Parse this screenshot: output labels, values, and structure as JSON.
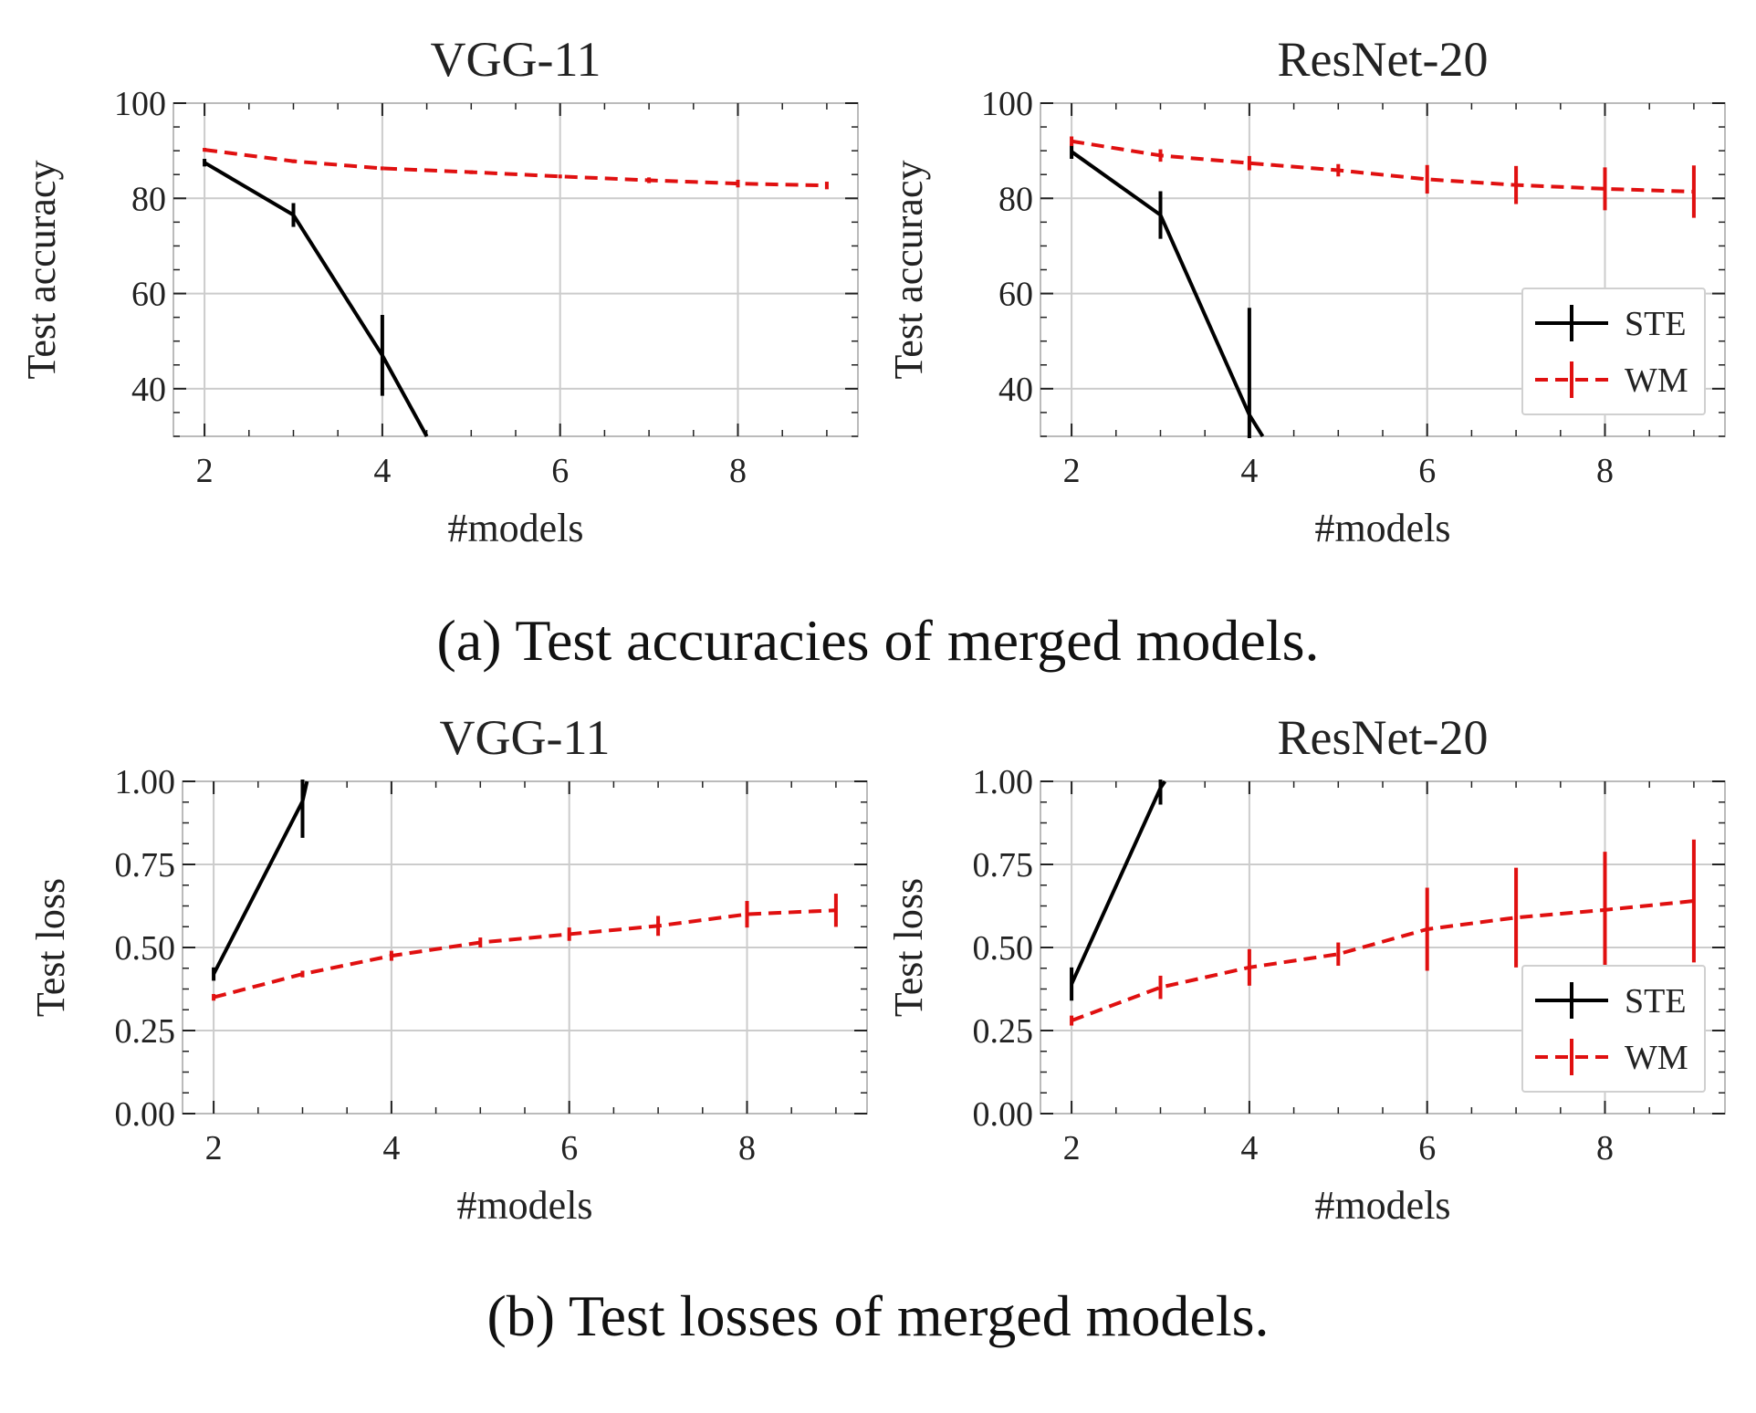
{
  "colors": {
    "ste": "#000000",
    "wm": "#e01010",
    "grid": "#cccccc",
    "frame": "#bbbbbb"
  },
  "captions": {
    "a": "(a) Test accuracies of merged models.",
    "b": "(b) Test losses of merged models."
  },
  "chart_data": [
    {
      "id": "acc-vgg",
      "type": "line",
      "title": "VGG-11",
      "xlabel": "#models",
      "ylabel": "Test accuracy",
      "xlim": [
        1.65,
        9.35
      ],
      "ylim": [
        30,
        100
      ],
      "xticks": [
        2,
        4,
        6,
        8
      ],
      "yticks": [
        40,
        60,
        80,
        100
      ],
      "ytick_labels": [
        "40",
        "60",
        "80",
        "100"
      ],
      "legend": null,
      "series": [
        {
          "name": "STE",
          "color": "#000000",
          "dashed": false,
          "x": [
            2,
            3,
            4,
            4.5
          ],
          "y": [
            87.5,
            76.5,
            47,
            30
          ],
          "err": [
            0.8,
            2.5,
            8.5,
            0
          ]
        },
        {
          "name": "WM",
          "color": "#e01010",
          "dashed": true,
          "x": [
            2,
            3,
            4,
            5,
            6,
            7,
            8,
            9
          ],
          "y": [
            90.2,
            87.8,
            86.3,
            85.5,
            84.6,
            83.8,
            83.1,
            82.7
          ],
          "err": [
            0.4,
            0.4,
            0.4,
            0.4,
            0.4,
            0.6,
            0.8,
            0.8
          ]
        }
      ]
    },
    {
      "id": "acc-resnet",
      "type": "line",
      "title": "ResNet-20",
      "xlabel": "#models",
      "ylabel": "Test accuracy",
      "xlim": [
        1.65,
        9.35
      ],
      "ylim": [
        30,
        100
      ],
      "xticks": [
        2,
        4,
        6,
        8
      ],
      "yticks": [
        40,
        60,
        80,
        100
      ],
      "ytick_labels": [
        "40",
        "60",
        "80",
        "100"
      ],
      "legend": "lower-right",
      "legend_entries": [
        "STE",
        "WM"
      ],
      "series": [
        {
          "name": "STE",
          "color": "#000000",
          "dashed": false,
          "x": [
            2,
            3,
            4,
            4.15
          ],
          "y": [
            89.8,
            76.5,
            34.5,
            30
          ],
          "err": [
            1.5,
            5.0,
            22.5,
            0
          ]
        },
        {
          "name": "WM",
          "color": "#e01010",
          "dashed": true,
          "x": [
            2,
            3,
            4,
            5,
            6,
            7,
            8,
            9
          ],
          "y": [
            92.0,
            89.0,
            87.4,
            85.9,
            84.0,
            82.8,
            82.0,
            81.4
          ],
          "err": [
            1.0,
            1.3,
            1.5,
            1.3,
            3.0,
            4.0,
            4.5,
            5.5
          ]
        }
      ]
    },
    {
      "id": "loss-vgg",
      "type": "line",
      "title": "VGG-11",
      "xlabel": "#models",
      "ylabel": "Test loss",
      "xlim": [
        1.65,
        9.35
      ],
      "ylim": [
        0,
        1
      ],
      "xticks": [
        2,
        4,
        6,
        8
      ],
      "yticks": [
        0,
        0.25,
        0.5,
        0.75,
        1.0
      ],
      "ytick_labels": [
        "0.00",
        "0.25",
        "0.50",
        "0.75",
        "1.00"
      ],
      "legend": null,
      "series": [
        {
          "name": "STE",
          "color": "#000000",
          "dashed": false,
          "x": [
            2,
            3,
            3.05
          ],
          "y": [
            0.42,
            0.94,
            1.0
          ],
          "err": [
            0.02,
            0.11,
            0
          ]
        },
        {
          "name": "WM",
          "color": "#e01010",
          "dashed": true,
          "x": [
            2,
            3,
            4,
            5,
            6,
            7,
            8,
            9
          ],
          "y": [
            0.35,
            0.42,
            0.475,
            0.515,
            0.54,
            0.565,
            0.6,
            0.612
          ],
          "err": [
            0.01,
            0.01,
            0.015,
            0.015,
            0.02,
            0.03,
            0.04,
            0.05
          ]
        }
      ]
    },
    {
      "id": "loss-resnet",
      "type": "line",
      "title": "ResNet-20",
      "xlabel": "#models",
      "ylabel": "Test loss",
      "xlim": [
        1.65,
        9.35
      ],
      "ylim": [
        0,
        1
      ],
      "xticks": [
        2,
        4,
        6,
        8
      ],
      "yticks": [
        0,
        0.25,
        0.5,
        0.75,
        1.0
      ],
      "ytick_labels": [
        "0.00",
        "0.25",
        "0.50",
        "0.75",
        "1.00"
      ],
      "legend": "lower-right",
      "legend_entries": [
        "STE",
        "WM"
      ],
      "series": [
        {
          "name": "STE",
          "color": "#000000",
          "dashed": false,
          "x": [
            2,
            3,
            3.05
          ],
          "y": [
            0.39,
            0.98,
            1.0
          ],
          "err": [
            0.05,
            0.05,
            0
          ]
        },
        {
          "name": "WM",
          "color": "#e01010",
          "dashed": true,
          "x": [
            2,
            3,
            4,
            5,
            6,
            7,
            8,
            9
          ],
          "y": [
            0.28,
            0.38,
            0.44,
            0.48,
            0.555,
            0.59,
            0.613,
            0.64
          ],
          "err": [
            0.015,
            0.035,
            0.055,
            0.035,
            0.125,
            0.15,
            0.175,
            0.185
          ]
        }
      ]
    }
  ]
}
